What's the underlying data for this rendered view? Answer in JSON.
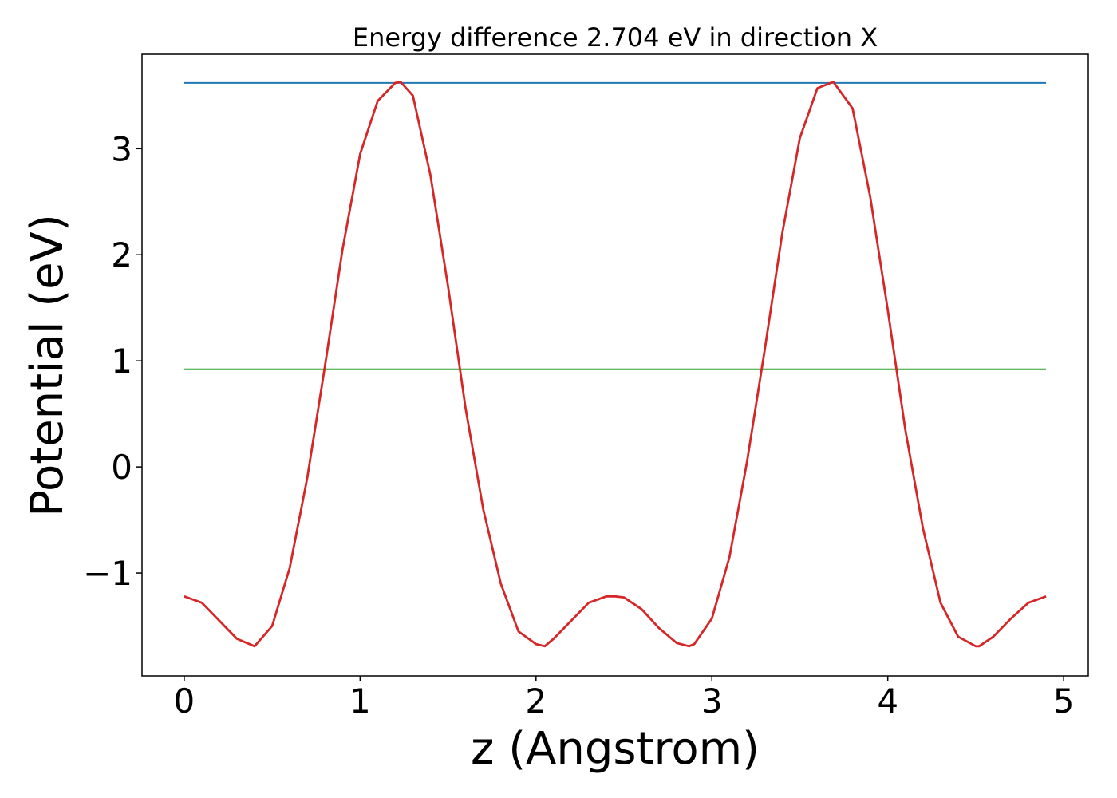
{
  "chart_data": {
    "type": "line",
    "title": "Energy difference 2.704 eV in direction X",
    "xlabel": "z (Angstrom)",
    "ylabel": "Potential (eV)",
    "xlim": [
      -0.24,
      5.14
    ],
    "ylim": [
      -1.97,
      3.89
    ],
    "grid": false,
    "x_ticks": [
      0,
      1,
      2,
      3,
      4,
      5
    ],
    "y_ticks": [
      -1,
      0,
      1,
      2,
      3
    ],
    "x_tick_labels": [
      "0",
      "1",
      "2",
      "3",
      "4",
      "5"
    ],
    "y_tick_labels": [
      "−1",
      "0",
      "1",
      "2",
      "3"
    ],
    "series": [
      {
        "color": "#1f77b4",
        "x": [
          0,
          4.9
        ],
        "y": [
          3.62,
          3.62
        ]
      },
      {
        "color": "#2ca02c",
        "x": [
          0,
          4.9
        ],
        "y": [
          0.92,
          0.92
        ]
      },
      {
        "color": "#d62728",
        "x": [
          0,
          0.1,
          0.2,
          0.3,
          0.4,
          0.5,
          0.6,
          0.7,
          0.8,
          0.9,
          1.0,
          1.1,
          1.2,
          1.23,
          1.3,
          1.4,
          1.5,
          1.6,
          1.7,
          1.8,
          1.9,
          2.0,
          2.05,
          2.1,
          2.2,
          2.3,
          2.4,
          2.45,
          2.5,
          2.6,
          2.7,
          2.8,
          2.87,
          2.9,
          3.0,
          3.1,
          3.2,
          3.3,
          3.4,
          3.5,
          3.6,
          3.69,
          3.8,
          3.9,
          4.0,
          4.1,
          4.2,
          4.3,
          4.4,
          4.5,
          4.52,
          4.6,
          4.7,
          4.8,
          4.9
        ],
        "y": [
          -1.22,
          -1.28,
          -1.45,
          -1.62,
          -1.69,
          -1.5,
          -0.95,
          -0.1,
          0.95,
          2.05,
          2.95,
          3.45,
          3.62,
          3.63,
          3.5,
          2.75,
          1.7,
          0.55,
          -0.4,
          -1.1,
          -1.55,
          -1.67,
          -1.69,
          -1.62,
          -1.45,
          -1.28,
          -1.22,
          -1.22,
          -1.23,
          -1.34,
          -1.52,
          -1.66,
          -1.69,
          -1.67,
          -1.43,
          -0.85,
          0.05,
          1.1,
          2.2,
          3.1,
          3.57,
          3.63,
          3.38,
          2.55,
          1.48,
          0.35,
          -0.58,
          -1.28,
          -1.6,
          -1.69,
          -1.69,
          -1.6,
          -1.43,
          -1.28,
          -1.22
        ]
      }
    ]
  }
}
